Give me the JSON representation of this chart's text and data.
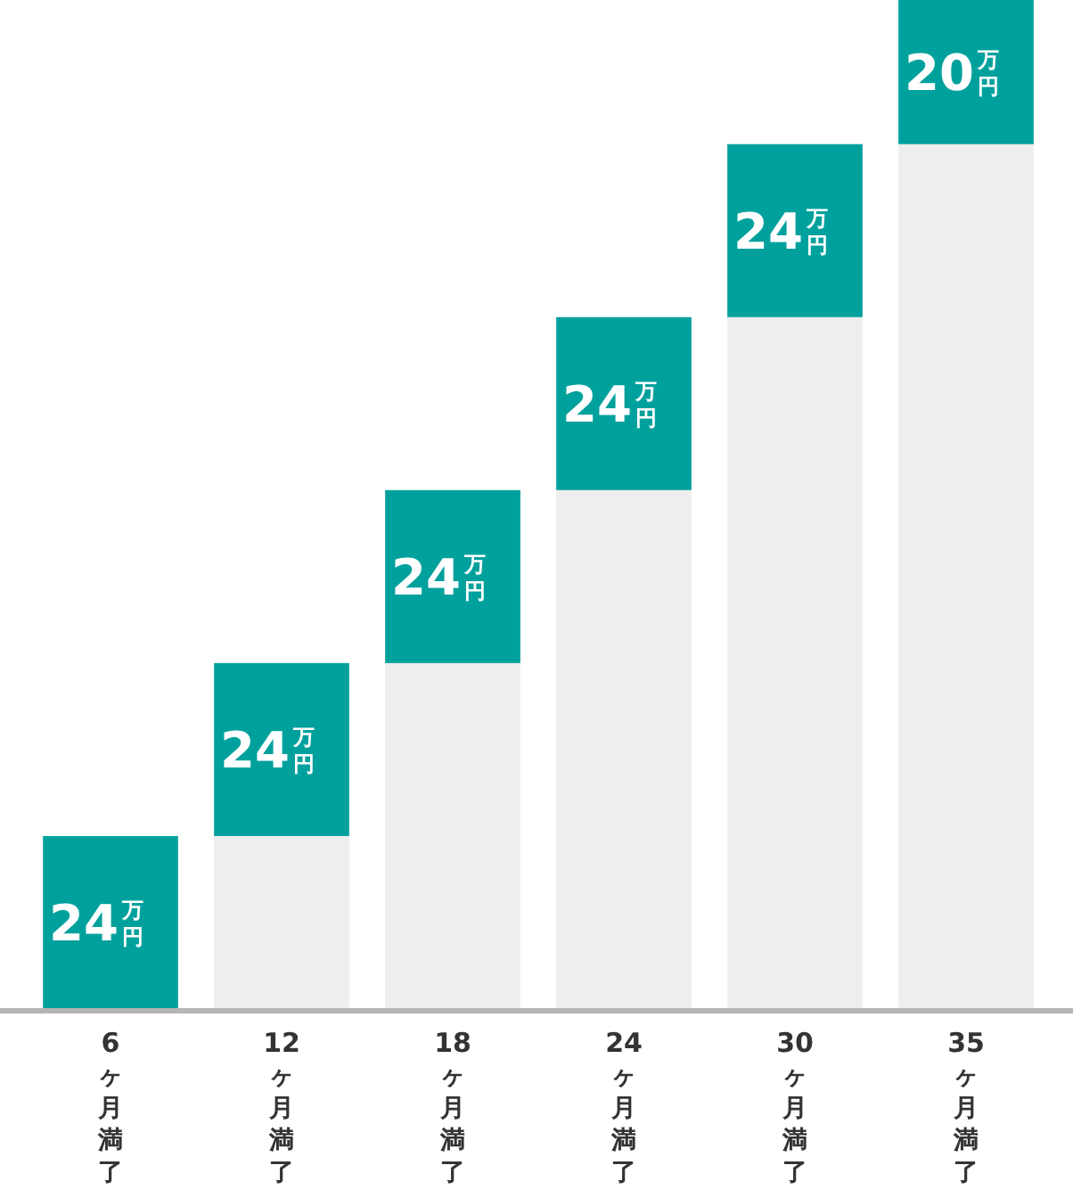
{
  "chart_data": {
    "type": "bar",
    "stacked": true,
    "categories": [
      "6ヶ月満了",
      "12ヶ月満了",
      "18ヶ月満了",
      "24ヶ月満了",
      "30ヶ月満了",
      "35ヶ月満了"
    ],
    "series": [
      {
        "color": "#eeeeee",
        "values": [
          0,
          24,
          48,
          72,
          96,
          120
        ]
      },
      {
        "color": "#00a19d",
        "values": [
          24,
          24,
          24,
          24,
          24,
          20
        ],
        "value_labels": [
          "24$^{万}$$_{円}$",
          "24$^{万}$$_{円}$",
          "24$^{万}$$_{円}$",
          "24$^{万}$$_{円}$",
          "24$^{万}$$_{円}$",
          "20$^{万}$$_{円}$"
        ]
      }
    ]
  }
}
